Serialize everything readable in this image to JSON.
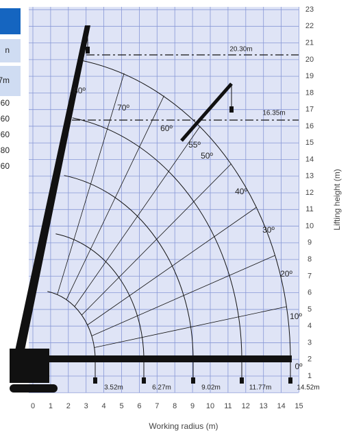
{
  "left_panel": {
    "rows": [
      "n",
      "7m",
      "60",
      "60",
      "60",
      "80",
      "60"
    ]
  },
  "diagram": {
    "y_axis_label": "Lifting height (m)",
    "x_axis_label": "Working radius (m)",
    "x_ticks": [
      "0",
      "1",
      "2",
      "3",
      "4",
      "5",
      "6",
      "7",
      "8",
      "9",
      "10",
      "11",
      "12",
      "13",
      "14",
      "15"
    ],
    "y_ticks": [
      "1",
      "2",
      "3",
      "4",
      "5",
      "6",
      "7",
      "8",
      "9",
      "10",
      "11",
      "12",
      "13",
      "14",
      "15",
      "16",
      "17",
      "18",
      "19",
      "20",
      "21",
      "22",
      "23"
    ],
    "angle_labels": [
      "80º",
      "70º",
      "60º",
      "55º",
      "50º",
      "40º",
      "30º",
      "20º",
      "10º",
      "0º"
    ],
    "radius_labels": [
      "3.52m",
      "6.27m",
      "9.02m",
      "11.77m",
      "14.52m"
    ],
    "height_labels": [
      "20.30m",
      "16.35m"
    ]
  }
}
